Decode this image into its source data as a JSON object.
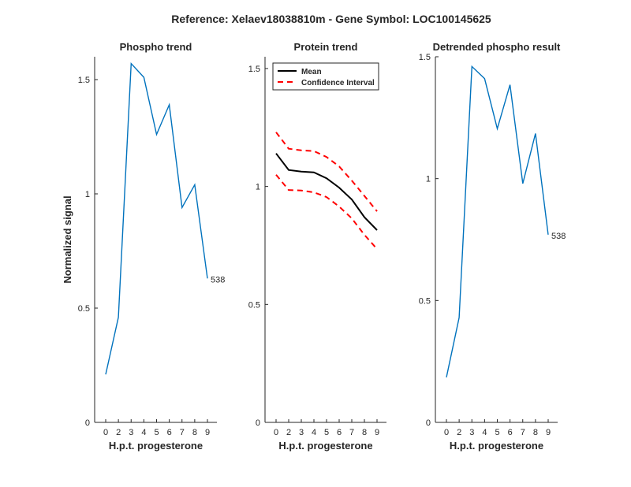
{
  "figure_title": "Reference:  Xelaev18038810m - Gene Symbol:  LOC100145625",
  "colors": {
    "series": "#0072bd",
    "mean": "#000000",
    "ci": "#ff0000",
    "axis": "#262626"
  },
  "chart_data": [
    {
      "type": "line",
      "title": "Phospho trend",
      "xlabel": "H.p.t. progesterone",
      "ylabel": "Normalized signal",
      "categories": [
        "0",
        "2",
        "3",
        "4",
        "5",
        "6",
        "7",
        "8",
        "9"
      ],
      "ylim": [
        0,
        1.6
      ],
      "yticks": [
        0,
        0.5,
        1,
        1.5
      ],
      "yticklabels": [
        "0",
        "0.5",
        "1",
        "1.5"
      ],
      "series": [
        {
          "name": "538",
          "values": [
            0.21,
            0.46,
            1.57,
            1.51,
            1.26,
            1.39,
            0.94,
            1.04,
            0.63
          ]
        }
      ],
      "point_label": {
        "text": "538",
        "index": 8
      }
    },
    {
      "type": "line",
      "title": "Protein trend",
      "xlabel": "H.p.t. progesterone",
      "ylabel": "",
      "categories": [
        "0",
        "2",
        "3",
        "4",
        "5",
        "6",
        "7",
        "8",
        "9"
      ],
      "ylim": [
        0,
        1.55
      ],
      "yticks": [
        0,
        0.5,
        1,
        1.5
      ],
      "yticklabels": [
        "0",
        "0.5",
        "1",
        "1.5"
      ],
      "legend": {
        "position": "top-left",
        "entries": [
          "Mean",
          "Confidence Interval"
        ]
      },
      "series": [
        {
          "name": "Mean",
          "style": "solid",
          "values": [
            1.14,
            1.07,
            1.063,
            1.06,
            1.035,
            0.995,
            0.945,
            0.87,
            0.815
          ]
        },
        {
          "name": "Confidence Interval",
          "style": "dashed",
          "values": [
            1.23,
            1.16,
            1.153,
            1.15,
            1.125,
            1.085,
            1.025,
            0.96,
            0.895
          ]
        },
        {
          "name": "Confidence Interval",
          "style": "dashed",
          "values": [
            1.05,
            0.985,
            0.983,
            0.975,
            0.955,
            0.915,
            0.865,
            0.795,
            0.735
          ]
        }
      ]
    },
    {
      "type": "line",
      "title": "Detrended phospho result",
      "xlabel": "H.p.t. progesterone",
      "ylabel": "",
      "categories": [
        "0",
        "2",
        "3",
        "4",
        "5",
        "6",
        "7",
        "8",
        "9"
      ],
      "ylim": [
        0,
        1.5
      ],
      "yticks": [
        0,
        0.5,
        1,
        1.5
      ],
      "yticklabels": [
        "0",
        "0.5",
        "1",
        "1.5"
      ],
      "series": [
        {
          "name": "538",
          "values": [
            0.185,
            0.43,
            1.46,
            1.41,
            1.205,
            1.385,
            0.98,
            1.185,
            0.77
          ]
        }
      ],
      "point_label": {
        "text": "538",
        "index": 8
      }
    }
  ]
}
